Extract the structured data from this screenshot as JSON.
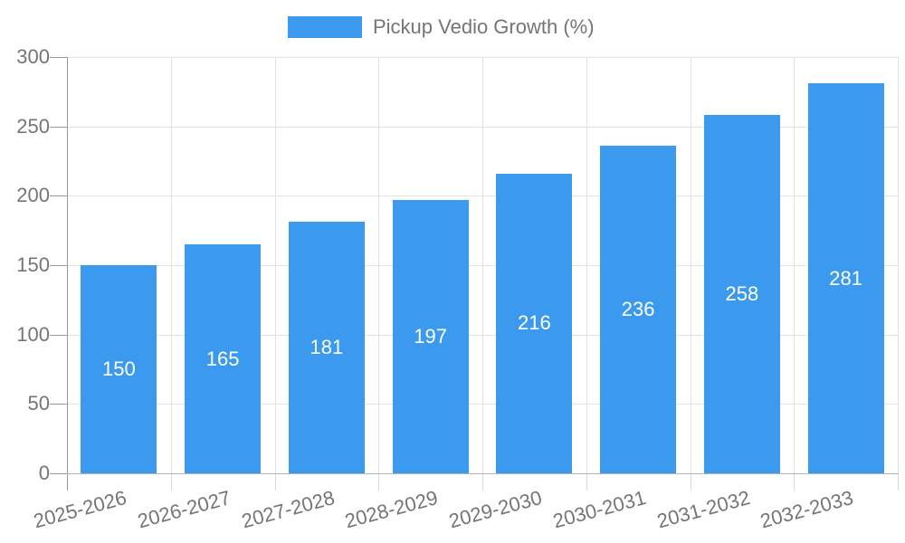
{
  "chart_data": {
    "type": "bar",
    "title": "",
    "legend_label": "Pickup Vedio Growth (%)",
    "legend_position": "top",
    "categories": [
      "2025-2026",
      "2026-2027",
      "2027-2028",
      "2028-2029",
      "2029-2030",
      "2030-2031",
      "2031-2032",
      "2032-2033"
    ],
    "series": [
      {
        "name": "Pickup Vedio Growth (%)",
        "values": [
          150,
          165,
          181,
          197,
          216,
          236,
          258,
          281
        ]
      }
    ],
    "xlabel": "",
    "ylabel": "",
    "ylim": [
      0,
      300
    ],
    "y_ticks": [
      0,
      50,
      100,
      150,
      200,
      250,
      300
    ],
    "grid": true,
    "bar_color": "#3b9aed",
    "value_label_color": "#ffffff",
    "axis_text_color": "#757575"
  }
}
